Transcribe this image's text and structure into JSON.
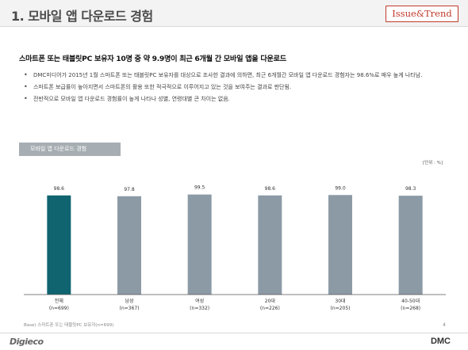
{
  "header": {
    "title": "1. 모바일 앱 다운로드 경험",
    "brand": "Issue&Trend"
  },
  "headline": "스마트폰 또는 태블릿PC 보유자 10명 중 약 9.9명이 최근 6개월 간 모바일 앱을 다운로드",
  "bullets": [
    "DMC미디어가 2015년 1월 스마트폰 또는 태블릿PC 보유자를 대상으로 조사한 결과에 의하면, 최근 6개월간 모바일 앱 다운로드 경험자는 98.6%로 매우 높게 나타남.",
    "스마트폰 보급률이 높아지면서 스마트폰의 활용 또한 적극적으로 이루어지고 있는 것을 보여주는 결과로 판단됨.",
    "전반적으로 모바일 앱 다운로드 경험률이 높게 나타나 성별, 연령대별 큰 차이는 없음."
  ],
  "chart_section": {
    "tag": "모바일 앱 다운로드 경험",
    "unit": "[단위 : %]"
  },
  "colors": {
    "highlight_bar": "#0f6470",
    "bar": "#8c9aa6",
    "brand_red": "#c0392b"
  },
  "chart_data": {
    "type": "bar",
    "categories": [
      "전체",
      "남성",
      "여성",
      "20대",
      "30대",
      "40-50대"
    ],
    "sample_sizes": [
      "(n=699)",
      "(n=367)",
      "(n=332)",
      "(n=226)",
      "(n=205)",
      "(n=268)"
    ],
    "values": [
      98.6,
      97.8,
      99.5,
      98.6,
      99.0,
      98.3
    ],
    "data_labels": [
      "98.6",
      "97.8",
      "99.5",
      "98.6",
      "99.0",
      "98.3"
    ],
    "highlight_index": 0,
    "ylim": [
      0,
      100
    ],
    "grid": false,
    "title": "",
    "xlabel": "",
    "ylabel": ""
  },
  "base_note": "Base) 스마트폰 또는 태블릿PC 보유자(n=699)",
  "page_number": "4",
  "footer": {
    "left_logo": "Digieco",
    "right_logo": "DMC"
  }
}
